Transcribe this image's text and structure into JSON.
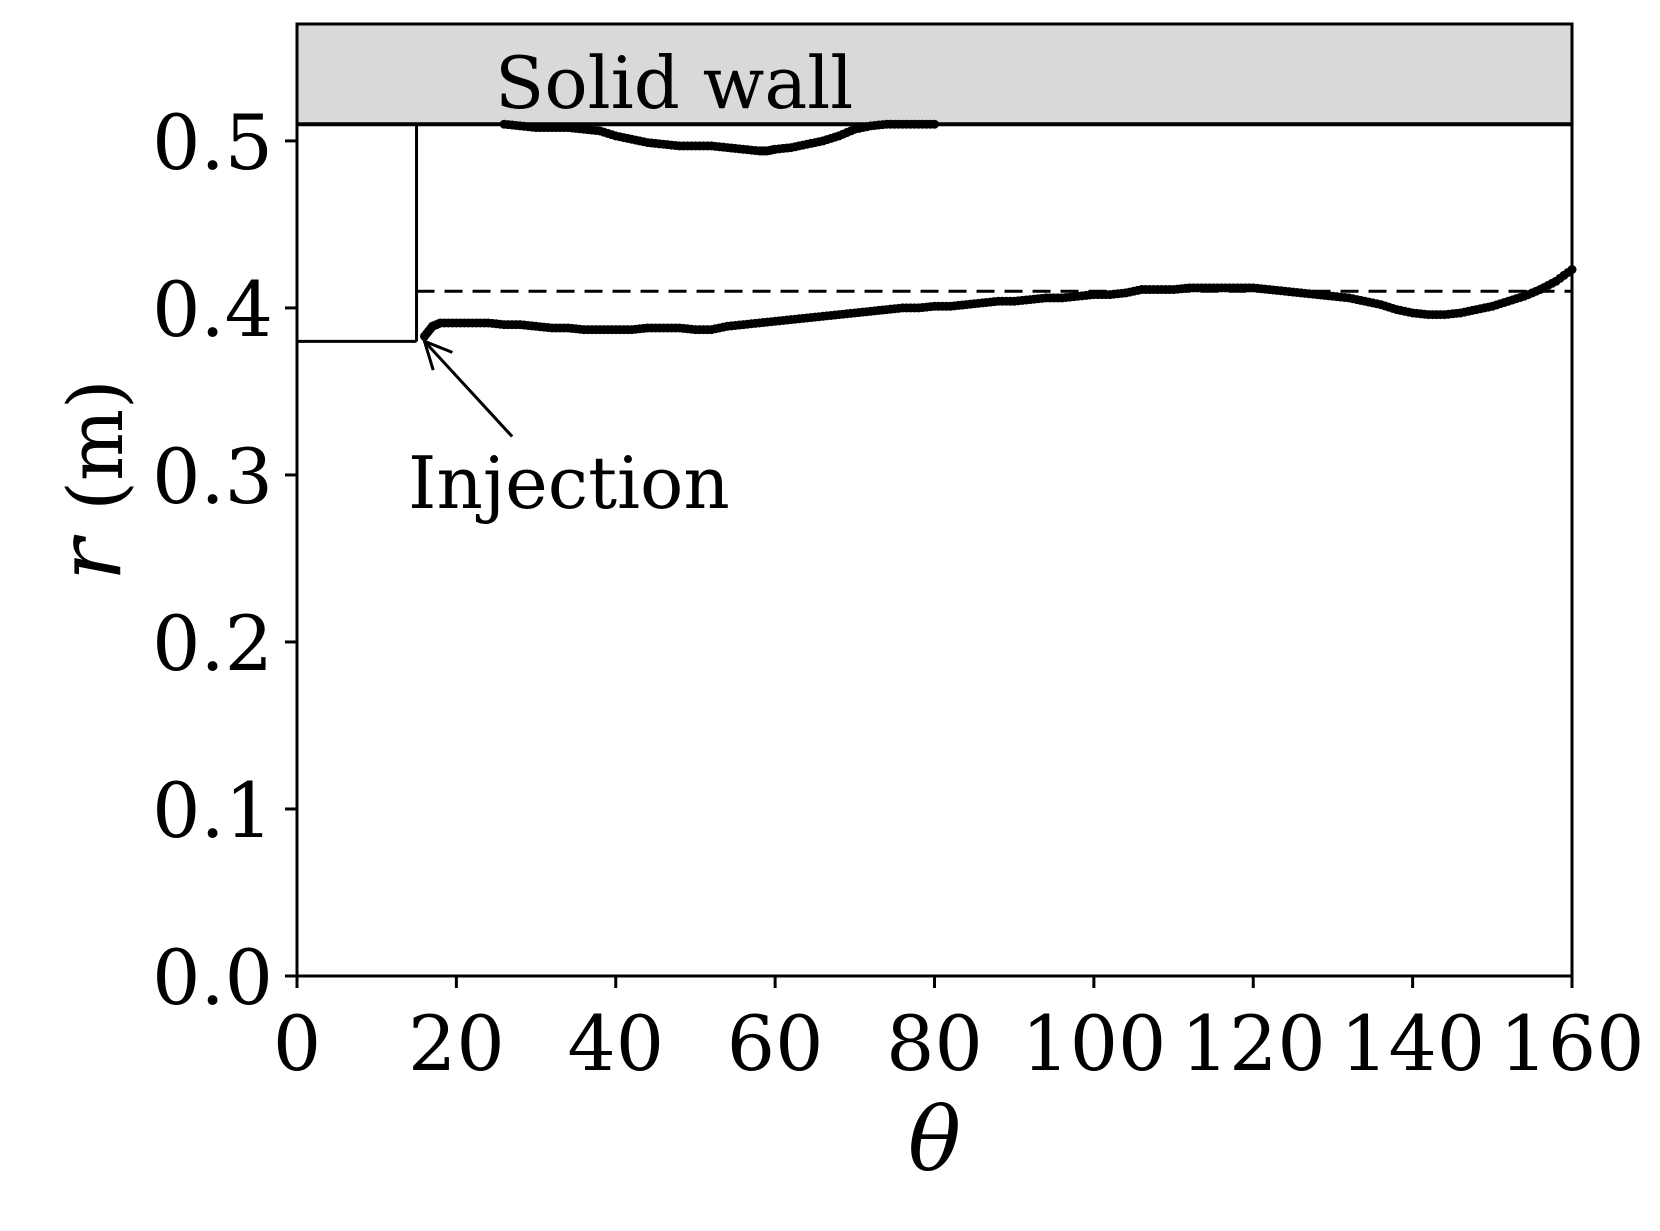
{
  "chart_data": {
    "type": "scatter",
    "title": "",
    "xlabel": "θ",
    "ylabel_var": "r",
    "ylabel_unit": "(m)",
    "xlim": [
      0,
      160
    ],
    "ylim": [
      0,
      0.57
    ],
    "xticks": [
      0,
      20,
      40,
      60,
      80,
      100,
      120,
      140,
      160
    ],
    "yticks": [
      0.0,
      0.1,
      0.2,
      0.3,
      0.4,
      0.5
    ],
    "xtick_labels": [
      "0",
      "20",
      "40",
      "60",
      "80",
      "100",
      "120",
      "140",
      "160"
    ],
    "ytick_labels": [
      "0.0",
      "0.1",
      "0.2",
      "0.3",
      "0.4",
      "0.5"
    ],
    "grid": false,
    "legend": "none",
    "solid_wall": {
      "label": "Solid wall",
      "r_from": 0.51,
      "r_to": 0.57,
      "fill": "#d9d9d9"
    },
    "injection": {
      "label": "Injection",
      "theta_start": 0,
      "theta_end": 15,
      "r_bottom": 0.38,
      "r_top": 0.51,
      "arrow_tip": [
        16,
        0.38
      ],
      "arrow_tail": [
        27,
        0.323
      ]
    },
    "reference_line": {
      "r": 0.41,
      "theta_from": 15,
      "theta_to": 160,
      "style": "dashed"
    },
    "series": [
      {
        "marker": "dot",
        "x": [
          26,
          28,
          30,
          32,
          34,
          36,
          38,
          40,
          42,
          44,
          46,
          48,
          50,
          52,
          54,
          56,
          58,
          59,
          60,
          62,
          64,
          66,
          68,
          70,
          72,
          74,
          76,
          78,
          80
        ],
        "y": [
          0.51,
          0.509,
          0.508,
          0.508,
          0.508,
          0.507,
          0.506,
          0.503,
          0.501,
          0.499,
          0.498,
          0.497,
          0.497,
          0.497,
          0.496,
          0.495,
          0.494,
          0.494,
          0.495,
          0.496,
          0.498,
          0.5,
          0.503,
          0.507,
          0.509,
          0.51,
          0.51,
          0.51,
          0.51
        ]
      },
      {
        "marker": "dot",
        "x": [
          16,
          17,
          18,
          20,
          22,
          24,
          26,
          28,
          30,
          32,
          34,
          36,
          38,
          40,
          42,
          44,
          46,
          48,
          50,
          52,
          54,
          56,
          58,
          60,
          62,
          64,
          66,
          68,
          70,
          72,
          74,
          76,
          78,
          80,
          82,
          84,
          86,
          88,
          90,
          92,
          94,
          96,
          98,
          100,
          102,
          104,
          106,
          108,
          110,
          112,
          114,
          116,
          118,
          120,
          122,
          124,
          126,
          128,
          130,
          132,
          134,
          136,
          138,
          140,
          142,
          144,
          146,
          148,
          150,
          152,
          154,
          156,
          158,
          160
        ],
        "y": [
          0.383,
          0.389,
          0.391,
          0.391,
          0.391,
          0.391,
          0.39,
          0.39,
          0.389,
          0.388,
          0.388,
          0.387,
          0.387,
          0.387,
          0.387,
          0.388,
          0.388,
          0.388,
          0.387,
          0.387,
          0.389,
          0.39,
          0.391,
          0.392,
          0.393,
          0.394,
          0.395,
          0.396,
          0.397,
          0.398,
          0.399,
          0.4,
          0.4,
          0.401,
          0.401,
          0.402,
          0.403,
          0.404,
          0.404,
          0.405,
          0.406,
          0.406,
          0.407,
          0.408,
          0.408,
          0.409,
          0.411,
          0.411,
          0.411,
          0.412,
          0.412,
          0.412,
          0.412,
          0.412,
          0.411,
          0.41,
          0.409,
          0.408,
          0.407,
          0.406,
          0.404,
          0.402,
          0.399,
          0.397,
          0.396,
          0.396,
          0.397,
          0.399,
          0.401,
          0.404,
          0.407,
          0.411,
          0.416,
          0.423
        ]
      }
    ]
  }
}
